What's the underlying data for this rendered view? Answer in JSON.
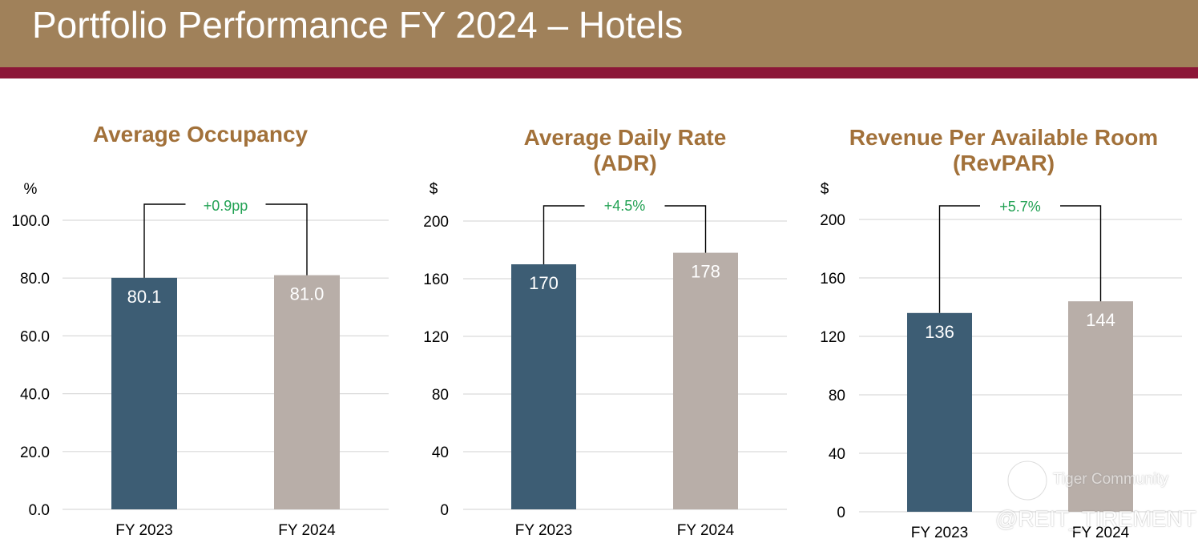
{
  "header": {
    "title": "Portfolio Performance FY 2024 – Hotels"
  },
  "colors": {
    "header_bg": "#a0815a",
    "stripe": "#8c1638",
    "title_text": "#a2713a",
    "bar_fy2023": "#3d5d74",
    "bar_fy2024": "#b8aea8",
    "change_text": "#21a153",
    "grid": "#d9d9d9"
  },
  "watermark": {
    "brand": "Tiger Community",
    "handle": "@REIT_TIREMENT"
  },
  "chart_data": [
    {
      "type": "bar",
      "title_lines": [
        "Average Occupancy"
      ],
      "unit": "%",
      "categories": [
        "FY 2023",
        "FY 2024"
      ],
      "values": [
        80.1,
        81.0
      ],
      "value_labels": [
        "80.1",
        "81.0"
      ],
      "ylim": [
        0,
        100
      ],
      "yticks": [
        "0.0",
        "20.0",
        "40.0",
        "60.0",
        "80.0",
        "100.0"
      ],
      "change_label": "+0.9pp",
      "xlabel": "",
      "ylabel": "%"
    },
    {
      "type": "bar",
      "title_lines": [
        "Average Daily Rate",
        "(ADR)"
      ],
      "unit": "$",
      "categories": [
        "FY 2023",
        "FY 2024"
      ],
      "values": [
        170,
        178
      ],
      "value_labels": [
        "170",
        "178"
      ],
      "ylim": [
        0,
        200
      ],
      "yticks": [
        "0",
        "40",
        "80",
        "120",
        "160",
        "200"
      ],
      "change_label": "+4.5%",
      "xlabel": "",
      "ylabel": "$"
    },
    {
      "type": "bar",
      "title_lines": [
        "Revenue Per Available Room",
        "(RevPAR)"
      ],
      "unit": "$",
      "categories": [
        "FY 2023",
        "FY 2024"
      ],
      "values": [
        136,
        144
      ],
      "value_labels": [
        "136",
        "144"
      ],
      "ylim": [
        0,
        200
      ],
      "yticks": [
        "0",
        "40",
        "80",
        "120",
        "160",
        "200"
      ],
      "change_label": "+5.7%",
      "xlabel": "",
      "ylabel": "$"
    }
  ]
}
